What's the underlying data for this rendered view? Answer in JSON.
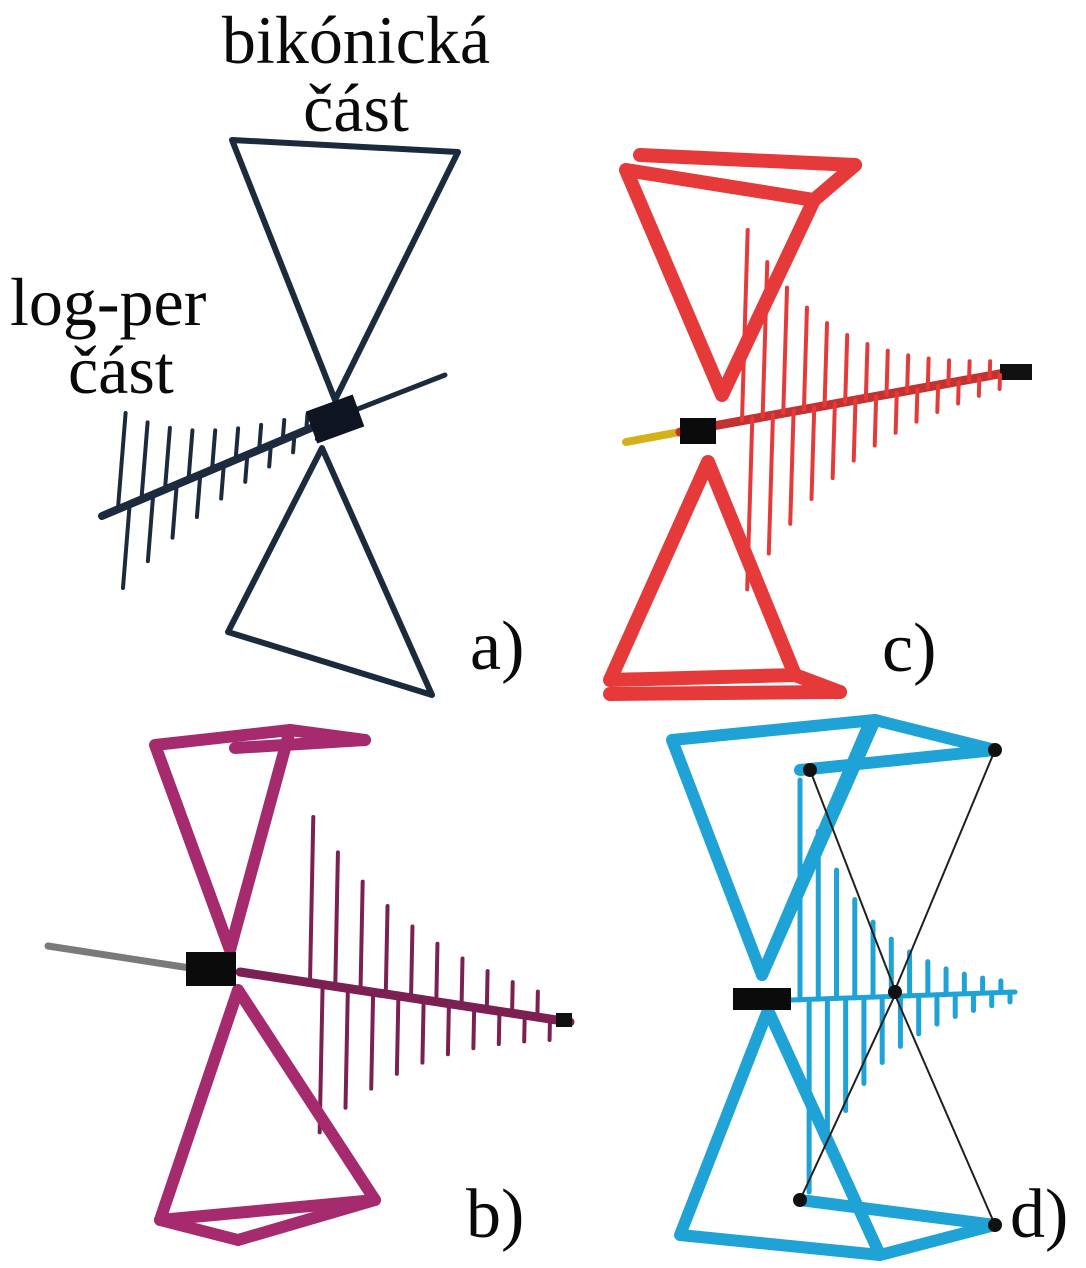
{
  "annotations": {
    "biconical_line1": "bikónická",
    "biconical_line2": "část",
    "logper_line1": "log-per",
    "logper_line2": "část"
  },
  "panels": [
    {
      "id": "a",
      "label": "a)",
      "color": "#1c2a3e",
      "style": "thin-frame"
    },
    {
      "id": "b",
      "label": "b)",
      "color": "#a52a6e",
      "style": "tube"
    },
    {
      "id": "c",
      "label": "c)",
      "color": "#e63a3a",
      "style": "tube"
    },
    {
      "id": "d",
      "label": "d)",
      "color": "#1fa3d6",
      "style": "tube-braced"
    }
  ]
}
